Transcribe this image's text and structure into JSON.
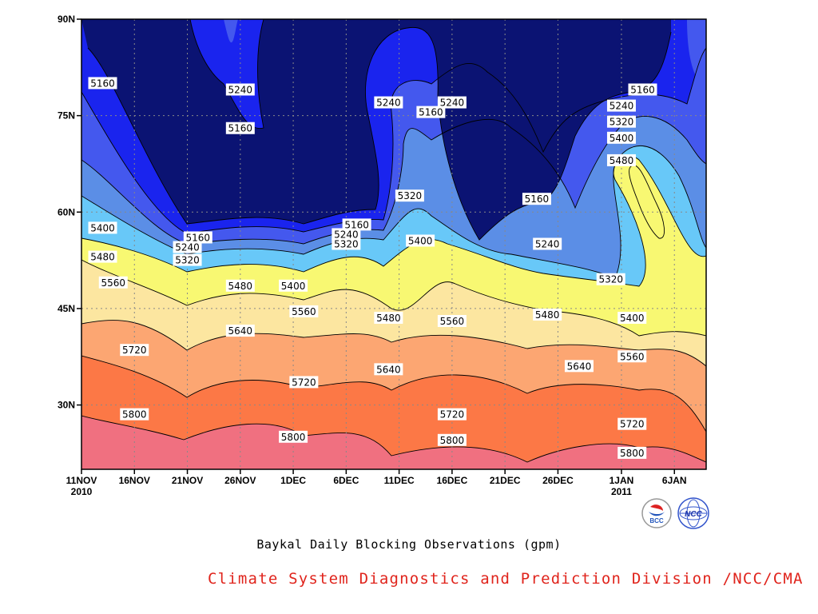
{
  "chart_data": {
    "type": "contour",
    "title": "Baykal Daily Blocking Observations (gpm)",
    "y_axis": {
      "ticks": [
        {
          "value": 90,
          "label": "90N"
        },
        {
          "value": 75,
          "label": "75N"
        },
        {
          "value": 60,
          "label": "60N"
        },
        {
          "value": 45,
          "label": "45N"
        },
        {
          "value": 30,
          "label": "30N"
        }
      ],
      "range": [
        20,
        90
      ]
    },
    "x_axis": {
      "ticks": [
        {
          "date": "2010-11-11",
          "label": "11NOV",
          "sublabel": "2010"
        },
        {
          "date": "2010-11-16",
          "label": "16NOV"
        },
        {
          "date": "2010-11-21",
          "label": "21NOV"
        },
        {
          "date": "2010-11-26",
          "label": "26NOV"
        },
        {
          "date": "2010-12-01",
          "label": "1DEC"
        },
        {
          "date": "2010-12-06",
          "label": "6DEC"
        },
        {
          "date": "2010-12-11",
          "label": "11DEC"
        },
        {
          "date": "2010-12-16",
          "label": "16DEC"
        },
        {
          "date": "2010-12-21",
          "label": "21DEC"
        },
        {
          "date": "2010-12-26",
          "label": "26DEC"
        },
        {
          "date": "2011-01-01",
          "label": "1JAN",
          "sublabel": "2011"
        },
        {
          "date": "2011-01-06",
          "label": "6JAN"
        }
      ],
      "range": [
        "2010-11-11",
        "2011-01-09"
      ]
    },
    "grid": true,
    "contour_levels": [
      5160,
      5240,
      5320,
      5400,
      5480,
      5560,
      5640,
      5720,
      5800
    ],
    "fill_colors": [
      "#0b1373",
      "#1a24ee",
      "#4458ee",
      "#5b8ee6",
      "#68c8f8",
      "#f8f872",
      "#fce6a0",
      "#fca672",
      "#fc7846",
      "#f07080"
    ],
    "contour_labels": [
      {
        "value": 5160,
        "date": "2010-11-13",
        "lat": 80
      },
      {
        "value": 5240,
        "date": "2010-11-26",
        "lat": 79
      },
      {
        "value": 5160,
        "date": "2010-11-26",
        "lat": 73
      },
      {
        "value": 5240,
        "date": "2010-12-10",
        "lat": 77
      },
      {
        "value": 5160,
        "date": "2010-12-14",
        "lat": 75.5
      },
      {
        "value": 5240,
        "date": "2010-12-16",
        "lat": 77
      },
      {
        "value": 5240,
        "date": "2011-01-01",
        "lat": 76.5
      },
      {
        "value": 5160,
        "date": "2011-01-03",
        "lat": 79
      },
      {
        "value": 5320,
        "date": "2011-01-01",
        "lat": 74
      },
      {
        "value": 5400,
        "date": "2011-01-01",
        "lat": 71.5
      },
      {
        "value": 5480,
        "date": "2011-01-01",
        "lat": 68
      },
      {
        "value": 5160,
        "date": "2010-12-24",
        "lat": 62
      },
      {
        "value": 5320,
        "date": "2010-12-12",
        "lat": 62.5
      },
      {
        "value": 5240,
        "date": "2010-12-25",
        "lat": 55
      },
      {
        "value": 5400,
        "date": "2010-12-13",
        "lat": 55.5
      },
      {
        "value": 5320,
        "date": "2010-12-31",
        "lat": 49.5
      },
      {
        "value": 5400,
        "date": "2011-01-02",
        "lat": 43.5
      },
      {
        "value": 5160,
        "date": "2010-12-07",
        "lat": 58
      },
      {
        "value": 5240,
        "date": "2010-12-06",
        "lat": 56.5
      },
      {
        "value": 5320,
        "date": "2010-12-06",
        "lat": 55
      },
      {
        "value": 5160,
        "date": "2010-11-22",
        "lat": 56
      },
      {
        "value": 5240,
        "date": "2010-11-21",
        "lat": 54.5
      },
      {
        "value": 5320,
        "date": "2010-11-21",
        "lat": 52.5
      },
      {
        "value": 5400,
        "date": "2010-11-13",
        "lat": 57.5
      },
      {
        "value": 5480,
        "date": "2010-11-13",
        "lat": 53
      },
      {
        "value": 5560,
        "date": "2010-11-14",
        "lat": 49
      },
      {
        "value": 5480,
        "date": "2010-11-26",
        "lat": 48.5
      },
      {
        "value": 5400,
        "date": "2010-12-01",
        "lat": 48.5
      },
      {
        "value": 5560,
        "date": "2010-12-02",
        "lat": 44.5
      },
      {
        "value": 5480,
        "date": "2010-12-10",
        "lat": 43.5
      },
      {
        "value": 5560,
        "date": "2010-12-16",
        "lat": 43
      },
      {
        "value": 5480,
        "date": "2010-12-25",
        "lat": 44
      },
      {
        "value": 5640,
        "date": "2010-11-26",
        "lat": 41.5
      },
      {
        "value": 5720,
        "date": "2010-11-16",
        "lat": 38.5
      },
      {
        "value": 5720,
        "date": "2010-12-02",
        "lat": 33.5
      },
      {
        "value": 5640,
        "date": "2010-12-10",
        "lat": 35.5
      },
      {
        "value": 5560,
        "date": "2011-01-02",
        "lat": 37.5
      },
      {
        "value": 5640,
        "date": "2010-12-28",
        "lat": 36
      },
      {
        "value": 5720,
        "date": "2010-12-16",
        "lat": 28.5
      },
      {
        "value": 5720,
        "date": "2011-01-02",
        "lat": 27
      },
      {
        "value": 5800,
        "date": "2010-11-16",
        "lat": 28.5
      },
      {
        "value": 5800,
        "date": "2010-12-01",
        "lat": 25
      },
      {
        "value": 5800,
        "date": "2010-12-16",
        "lat": 24.5
      },
      {
        "value": 5800,
        "date": "2011-01-02",
        "lat": 22.5
      }
    ]
  },
  "logos": {
    "left": "BCC",
    "right": "NCC"
  },
  "caption": "Baykal Daily Blocking Observations (gpm)",
  "footer": {
    "text": "Climate System Diagnostics and Prediction Division /NCC/CMA",
    "color": "#e0241c"
  }
}
